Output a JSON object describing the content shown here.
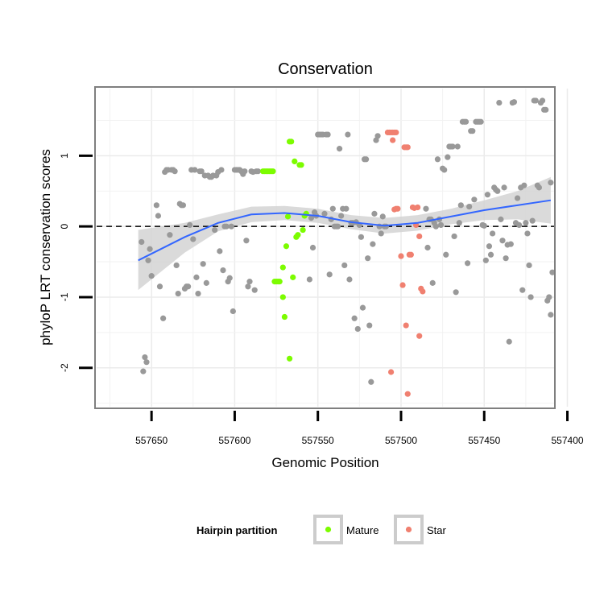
{
  "chart_data": {
    "type": "scatter",
    "title": "Conservation",
    "xlabel": "Genomic Position",
    "ylabel": "phyloP LRT conservation scores",
    "x_reversed": true,
    "xlim": [
      557408,
      557683
    ],
    "ylim": [
      -2.55,
      1.95
    ],
    "x_ticks": [
      557650,
      557600,
      557550,
      557500,
      557450,
      557400
    ],
    "y_ticks": [
      -2,
      -1,
      0,
      1
    ],
    "grid": true,
    "reference_line": {
      "y": 0,
      "style": "dashed"
    },
    "colors": {
      "other": "#999999",
      "mature": "#7CFC00",
      "star": "#F08070",
      "trend": "#3366FF",
      "band": "#D3D3D3"
    },
    "legend": {
      "title": "Hairpin partition",
      "placement": "bottom",
      "entries": [
        {
          "label": "Mature",
          "color": "#7CFC00"
        },
        {
          "label": "Star",
          "color": "#F08070"
        }
      ]
    },
    "trend": {
      "x": [
        557658,
        557630,
        557610,
        557590,
        557570,
        557550,
        557530,
        557510,
        557490,
        557470,
        557450,
        557430,
        557410
      ],
      "y": [
        -0.48,
        -0.15,
        0.05,
        0.17,
        0.19,
        0.15,
        0.06,
        0.01,
        0.05,
        0.14,
        0.23,
        0.3,
        0.37
      ],
      "upper": [
        -0.05,
        0.05,
        0.17,
        0.28,
        0.29,
        0.25,
        0.16,
        0.12,
        0.16,
        0.25,
        0.37,
        0.5,
        0.7
      ],
      "lower": [
        -0.9,
        -0.37,
        -0.07,
        0.06,
        0.09,
        0.05,
        -0.04,
        -0.1,
        -0.06,
        0.03,
        0.09,
        0.1,
        0.04
      ]
    },
    "series": [
      {
        "name": "Mature",
        "points": [
          [
            557583,
            0.78
          ],
          [
            557582,
            0.78
          ],
          [
            557581,
            0.78
          ],
          [
            557580,
            0.78
          ],
          [
            557579,
            0.78
          ],
          [
            557578,
            0.78
          ],
          [
            557577,
            0.78
          ],
          [
            557576,
            -0.78
          ],
          [
            557575,
            -0.78
          ],
          [
            557574,
            -0.78
          ],
          [
            557573,
            -0.78
          ],
          [
            557571,
            -1.0
          ],
          [
            557570,
            -1.28
          ],
          [
            557571,
            -0.58
          ],
          [
            557569,
            -0.28
          ],
          [
            557568,
            0.14
          ],
          [
            557567,
            1.2
          ],
          [
            557566,
            1.2
          ],
          [
            557565,
            -0.72
          ],
          [
            557564,
            0.92
          ],
          [
            557563,
            -0.15
          ],
          [
            557562,
            -0.12
          ],
          [
            557561,
            0.87
          ],
          [
            557560,
            0.87
          ],
          [
            557559,
            -0.05
          ],
          [
            557558,
            0.15
          ],
          [
            557557,
            0.18
          ],
          [
            557567,
            -1.87
          ]
        ]
      },
      {
        "name": "Star",
        "points": [
          [
            557508,
            1.33
          ],
          [
            557507,
            1.33
          ],
          [
            557506,
            1.33
          ],
          [
            557505,
            1.33
          ],
          [
            557504,
            1.33
          ],
          [
            557503,
            1.33
          ],
          [
            557505,
            1.22
          ],
          [
            557504,
            0.24
          ],
          [
            557503,
            0.25
          ],
          [
            557502,
            0.25
          ],
          [
            557498,
            1.12
          ],
          [
            557497,
            1.12
          ],
          [
            557496,
            1.12
          ],
          [
            557500,
            -0.42
          ],
          [
            557499,
            -0.83
          ],
          [
            557497,
            -1.4
          ],
          [
            557495,
            -0.4
          ],
          [
            557494,
            -0.4
          ],
          [
            557493,
            0.27
          ],
          [
            557492,
            0.26
          ],
          [
            557491,
            0.02
          ],
          [
            557490,
            0.27
          ],
          [
            557489,
            -0.14
          ],
          [
            557488,
            -0.88
          ],
          [
            557487,
            -0.92
          ],
          [
            557489,
            -1.55
          ],
          [
            557506,
            -2.06
          ],
          [
            557496,
            -2.37
          ]
        ]
      },
      {
        "name": "",
        "points": [
          [
            557656,
            -0.22
          ],
          [
            557655,
            -2.05
          ],
          [
            557654,
            -1.85
          ],
          [
            557653,
            -1.92
          ],
          [
            557652,
            -0.48
          ],
          [
            557651,
            -0.32
          ],
          [
            557650,
            -0.7
          ],
          [
            557647,
            0.3
          ],
          [
            557646,
            0.15
          ],
          [
            557645,
            -0.85
          ],
          [
            557643,
            -1.3
          ],
          [
            557642,
            0.77
          ],
          [
            557641,
            0.8
          ],
          [
            557640,
            0.8
          ],
          [
            557639,
            -0.12
          ],
          [
            557638,
            0.8
          ],
          [
            557637,
            0.8
          ],
          [
            557636,
            0.78
          ],
          [
            557635,
            -0.55
          ],
          [
            557634,
            -0.95
          ],
          [
            557633,
            0.32
          ],
          [
            557632,
            0.3
          ],
          [
            557631,
            0.3
          ],
          [
            557630,
            -0.88
          ],
          [
            557629,
            -0.85
          ],
          [
            557628,
            -0.85
          ],
          [
            557627,
            0.02
          ],
          [
            557626,
            0.8
          ],
          [
            557625,
            -0.18
          ],
          [
            557624,
            0.8
          ],
          [
            557623,
            -0.72
          ],
          [
            557622,
            -0.95
          ],
          [
            557621,
            0.78
          ],
          [
            557620,
            0.78
          ],
          [
            557619,
            -0.53
          ],
          [
            557618,
            0.72
          ],
          [
            557617,
            -0.8
          ],
          [
            557616,
            0.72
          ],
          [
            557615,
            0.7
          ],
          [
            557614,
            0.7
          ],
          [
            557613,
            0.72
          ],
          [
            557612,
            -0.05
          ],
          [
            557611,
            0.72
          ],
          [
            557610,
            0.77
          ],
          [
            557609,
            -0.35
          ],
          [
            557608,
            0.8
          ],
          [
            557607,
            -0.62
          ],
          [
            557606,
            0.0
          ],
          [
            557605,
            0.0
          ],
          [
            557604,
            -0.78
          ],
          [
            557603,
            -0.73
          ],
          [
            557602,
            0.0
          ],
          [
            557601,
            -1.2
          ],
          [
            557600,
            0.8
          ],
          [
            557599,
            0.8
          ],
          [
            557598,
            0.8
          ],
          [
            557597,
            0.8
          ],
          [
            557596,
            0.78
          ],
          [
            557595,
            0.74
          ],
          [
            557594,
            0.78
          ],
          [
            557593,
            -0.2
          ],
          [
            557592,
            -0.85
          ],
          [
            557591,
            -0.78
          ],
          [
            557590,
            0.78
          ],
          [
            557589,
            0.77
          ],
          [
            557588,
            -0.9
          ],
          [
            557587,
            0.78
          ],
          [
            557586,
            0.78
          ],
          [
            557555,
            -0.75
          ],
          [
            557554,
            0.12
          ],
          [
            557553,
            -0.3
          ],
          [
            557552,
            0.2
          ],
          [
            557551,
            0.15
          ],
          [
            557550,
            1.3
          ],
          [
            557549,
            1.3
          ],
          [
            557548,
            1.3
          ],
          [
            557547,
            1.3
          ],
          [
            557546,
            0.18
          ],
          [
            557545,
            1.3
          ],
          [
            557544,
            1.3
          ],
          [
            557543,
            -0.68
          ],
          [
            557542,
            0.1
          ],
          [
            557541,
            0.25
          ],
          [
            557540,
            0.0
          ],
          [
            557539,
            0.0
          ],
          [
            557538,
            0.0
          ],
          [
            557537,
            1.1
          ],
          [
            557536,
            0.15
          ],
          [
            557535,
            0.25
          ],
          [
            557534,
            -0.55
          ],
          [
            557533,
            0.25
          ],
          [
            557532,
            1.3
          ],
          [
            557531,
            -0.75
          ],
          [
            557530,
            0.05
          ],
          [
            557529,
            0.05
          ],
          [
            557528,
            -1.3
          ],
          [
            557527,
            0.06
          ],
          [
            557526,
            -1.45
          ],
          [
            557525,
            0.02
          ],
          [
            557524,
            -0.15
          ],
          [
            557523,
            -1.15
          ],
          [
            557522,
            0.95
          ],
          [
            557521,
            0.95
          ],
          [
            557520,
            -0.45
          ],
          [
            557519,
            -1.4
          ],
          [
            557518,
            -2.2
          ],
          [
            557517,
            -0.25
          ],
          [
            557516,
            0.18
          ],
          [
            557515,
            1.22
          ],
          [
            557514,
            1.28
          ],
          [
            557513,
            0.0
          ],
          [
            557512,
            -0.1
          ],
          [
            557511,
            0.14
          ],
          [
            557510,
            0.0
          ],
          [
            557509,
            0.0
          ],
          [
            557485,
            0.25
          ],
          [
            557484,
            -0.3
          ],
          [
            557483,
            0.1
          ],
          [
            557482,
            0.1
          ],
          [
            557481,
            -0.8
          ],
          [
            557480,
            0.05
          ],
          [
            557479,
            0.0
          ],
          [
            557478,
            0.95
          ],
          [
            557477,
            0.1
          ],
          [
            557476,
            0.02
          ],
          [
            557475,
            0.82
          ],
          [
            557474,
            0.8
          ],
          [
            557473,
            -0.4
          ],
          [
            557472,
            0.98
          ],
          [
            557471,
            1.13
          ],
          [
            557470,
            1.13
          ],
          [
            557469,
            1.13
          ],
          [
            557468,
            -0.14
          ],
          [
            557467,
            -0.93
          ],
          [
            557466,
            1.13
          ],
          [
            557465,
            0.05
          ],
          [
            557464,
            0.3
          ],
          [
            557463,
            1.48
          ],
          [
            557462,
            1.48
          ],
          [
            557461,
            1.48
          ],
          [
            557460,
            -0.52
          ],
          [
            557459,
            0.28
          ],
          [
            557458,
            1.35
          ],
          [
            557457,
            1.35
          ],
          [
            557456,
            0.38
          ],
          [
            557455,
            1.48
          ],
          [
            557454,
            1.48
          ],
          [
            557453,
            1.48
          ],
          [
            557452,
            1.48
          ],
          [
            557451,
            0.02
          ],
          [
            557450,
            0.01
          ],
          [
            557449,
            -0.48
          ],
          [
            557448,
            0.45
          ],
          [
            557447,
            -0.28
          ],
          [
            557446,
            -0.4
          ],
          [
            557445,
            -0.1
          ],
          [
            557444,
            0.55
          ],
          [
            557443,
            0.52
          ],
          [
            557442,
            0.5
          ],
          [
            557441,
            1.75
          ],
          [
            557440,
            0.1
          ],
          [
            557439,
            -0.2
          ],
          [
            557438,
            0.55
          ],
          [
            557437,
            -0.45
          ],
          [
            557436,
            -0.26
          ],
          [
            557435,
            -1.63
          ],
          [
            557434,
            -0.25
          ],
          [
            557433,
            1.75
          ],
          [
            557432,
            1.76
          ],
          [
            557431,
            0.05
          ],
          [
            557430,
            0.4
          ],
          [
            557429,
            0.02
          ],
          [
            557428,
            0.55
          ],
          [
            557427,
            -0.9
          ],
          [
            557426,
            0.58
          ],
          [
            557425,
            0.05
          ],
          [
            557424,
            -0.1
          ],
          [
            557423,
            -0.55
          ],
          [
            557422,
            -1.0
          ],
          [
            557421,
            0.08
          ],
          [
            557420,
            1.78
          ],
          [
            557419,
            1.78
          ],
          [
            557418,
            0.58
          ],
          [
            557417,
            0.55
          ],
          [
            557416,
            1.75
          ],
          [
            557415,
            1.78
          ],
          [
            557414,
            1.65
          ],
          [
            557413,
            1.65
          ],
          [
            557412,
            -1.05
          ],
          [
            557411,
            -1.0
          ],
          [
            557410,
            -1.25
          ],
          [
            557409,
            -0.65
          ],
          [
            557410,
            0.62
          ]
        ]
      }
    ]
  }
}
